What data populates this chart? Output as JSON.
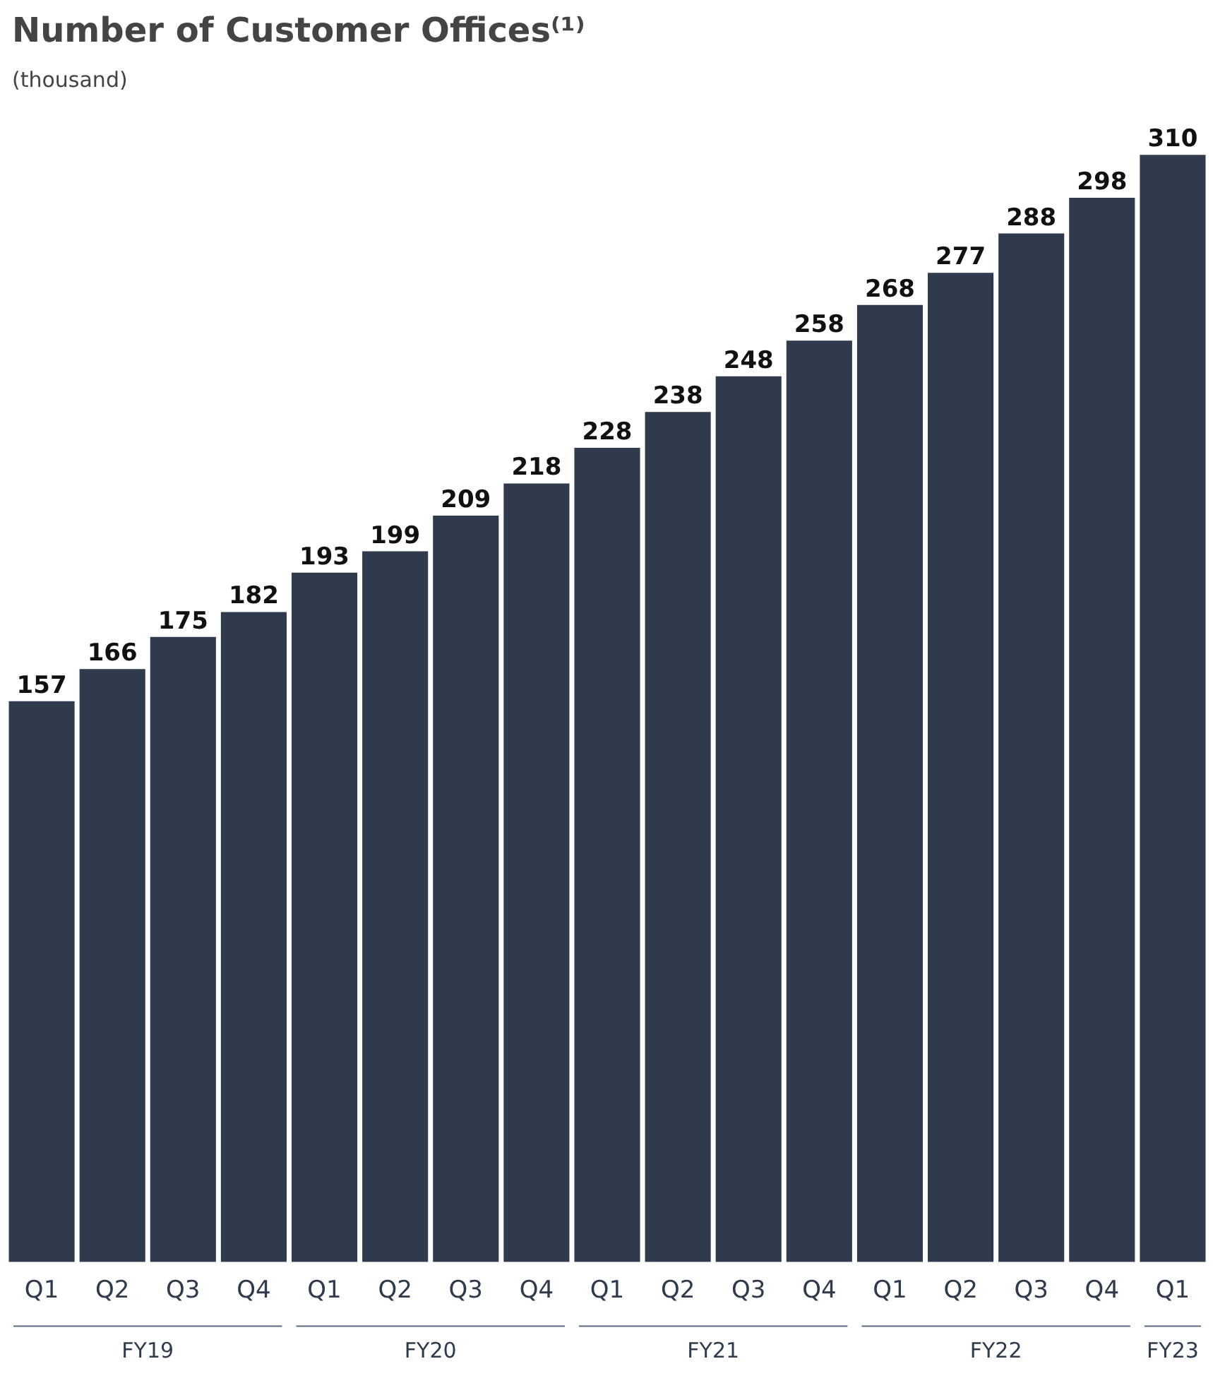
{
  "chart_data": {
    "type": "bar",
    "title": "Number of Customer Offices⁽¹⁾",
    "subtitle": "(thousand)",
    "categories": [
      "Q1",
      "Q2",
      "Q3",
      "Q4",
      "Q1",
      "Q2",
      "Q3",
      "Q4",
      "Q1",
      "Q2",
      "Q3",
      "Q4",
      "Q1",
      "Q2",
      "Q3",
      "Q4",
      "Q1"
    ],
    "values": [
      157,
      166,
      175,
      182,
      193,
      199,
      209,
      218,
      228,
      238,
      248,
      258,
      268,
      277,
      288,
      298,
      310
    ],
    "color": "#2f3a4c",
    "data_labels": true,
    "annotations": [
      "FY19",
      "FY20",
      "FY21",
      "FY22",
      "FY23"
    ]
  }
}
